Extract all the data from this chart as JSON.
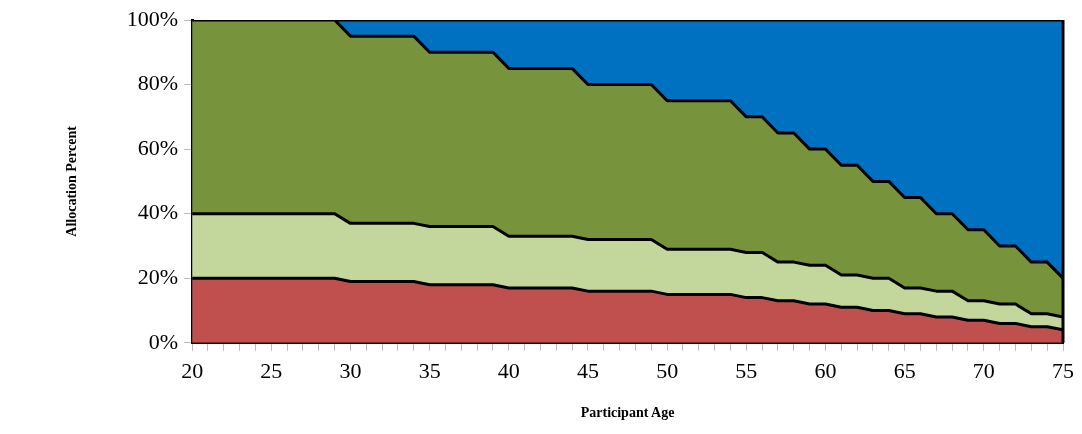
{
  "chart_data": {
    "type": "area",
    "stacked": true,
    "xlabel": "Participant Age",
    "ylabel": "Allocation Percent",
    "x": [
      20,
      21,
      22,
      23,
      24,
      25,
      26,
      27,
      28,
      29,
      30,
      31,
      32,
      33,
      34,
      35,
      36,
      37,
      38,
      39,
      40,
      41,
      42,
      43,
      44,
      45,
      46,
      47,
      48,
      49,
      50,
      51,
      52,
      53,
      54,
      55,
      56,
      57,
      58,
      59,
      60,
      61,
      62,
      63,
      64,
      65,
      66,
      67,
      68,
      69,
      70,
      71,
      72,
      73,
      74,
      75
    ],
    "series": [
      {
        "color": "#c0504d",
        "values": [
          20,
          20,
          20,
          20,
          20,
          20,
          20,
          20,
          20,
          20,
          19,
          19,
          19,
          19,
          19,
          18,
          18,
          18,
          18,
          18,
          17,
          17,
          17,
          17,
          17,
          16,
          16,
          16,
          16,
          16,
          15,
          15,
          15,
          15,
          15,
          14,
          14,
          13,
          13,
          12,
          12,
          11,
          11,
          10,
          10,
          9,
          9,
          8,
          8,
          7,
          7,
          6,
          6,
          5,
          5,
          4
        ]
      },
      {
        "color": "#c3d69b",
        "values": [
          20,
          20,
          20,
          20,
          20,
          20,
          20,
          20,
          20,
          20,
          18,
          18,
          18,
          18,
          18,
          18,
          18,
          18,
          18,
          18,
          16,
          16,
          16,
          16,
          16,
          16,
          16,
          16,
          16,
          16,
          14,
          14,
          14,
          14,
          14,
          14,
          14,
          12,
          12,
          12,
          12,
          10,
          10,
          10,
          10,
          8,
          8,
          8,
          8,
          6,
          6,
          6,
          6,
          4,
          4,
          4
        ]
      },
      {
        "color": "#77933c",
        "values": [
          60,
          60,
          60,
          60,
          60,
          60,
          60,
          60,
          60,
          60,
          58,
          58,
          58,
          58,
          58,
          54,
          54,
          54,
          54,
          54,
          52,
          52,
          52,
          52,
          52,
          48,
          48,
          48,
          48,
          48,
          46,
          46,
          46,
          46,
          46,
          42,
          42,
          40,
          40,
          36,
          36,
          34,
          34,
          30,
          30,
          28,
          28,
          24,
          24,
          22,
          22,
          18,
          18,
          16,
          16,
          12
        ]
      },
      {
        "color": "#0070c0",
        "values": [
          0,
          0,
          0,
          0,
          0,
          0,
          0,
          0,
          0,
          0,
          5,
          5,
          5,
          5,
          5,
          10,
          10,
          10,
          10,
          10,
          15,
          15,
          15,
          15,
          15,
          20,
          20,
          20,
          20,
          20,
          25,
          25,
          25,
          25,
          25,
          30,
          30,
          35,
          35,
          40,
          40,
          45,
          45,
          50,
          50,
          55,
          55,
          60,
          60,
          65,
          65,
          70,
          70,
          75,
          75,
          80
        ]
      }
    ],
    "xlim": [
      20,
      75
    ],
    "xticks": [
      20,
      {
        "value": 21,
        "label": null
      },
      {
        "value": 22,
        "label": null
      },
      {
        "value": 23,
        "label": null
      },
      {
        "value": 24,
        "label": null
      },
      25,
      {
        "value": 26,
        "label": null
      },
      {
        "value": 27,
        "label": null
      },
      {
        "value": 28,
        "label": null
      },
      {
        "value": 29,
        "label": null
      },
      30,
      {
        "value": 31,
        "label": null
      },
      {
        "value": 32,
        "label": null
      },
      {
        "value": 33,
        "label": null
      },
      {
        "value": 34,
        "label": null
      },
      35,
      {
        "value": 36,
        "label": null
      },
      {
        "value": 37,
        "label": null
      },
      {
        "value": 38,
        "label": null
      },
      {
        "value": 39,
        "label": null
      },
      40,
      {
        "value": 41,
        "label": null
      },
      {
        "value": 42,
        "label": null
      },
      {
        "value": 43,
        "label": null
      },
      {
        "value": 44,
        "label": null
      },
      45,
      {
        "value": 46,
        "label": null
      },
      {
        "value": 47,
        "label": null
      },
      {
        "value": 48,
        "label": null
      },
      {
        "value": 49,
        "label": null
      },
      50,
      {
        "value": 51,
        "label": null
      },
      {
        "value": 52,
        "label": null
      },
      {
        "value": 53,
        "label": null
      },
      {
        "value": 54,
        "label": null
      },
      55,
      {
        "value": 56,
        "label": null
      },
      {
        "value": 57,
        "label": null
      },
      {
        "value": 58,
        "label": null
      },
      {
        "value": 59,
        "label": null
      },
      60,
      {
        "value": 61,
        "label": null
      },
      {
        "value": 62,
        "label": null
      },
      {
        "value": 63,
        "label": null
      },
      {
        "value": 64,
        "label": null
      },
      65,
      {
        "value": 66,
        "label": null
      },
      {
        "value": 67,
        "label": null
      },
      {
        "value": 68,
        "label": null
      },
      {
        "value": 69,
        "label": null
      },
      70,
      {
        "value": 71,
        "label": null
      },
      {
        "value": 72,
        "label": null
      },
      {
        "value": 73,
        "label": null
      },
      {
        "value": 74,
        "label": null
      },
      75
    ],
    "ylim": [
      0,
      100
    ],
    "yticks": [
      {
        "value": 0,
        "label": "0%"
      },
      {
        "value": 20,
        "label": "20%"
      },
      {
        "value": 40,
        "label": "40%"
      },
      {
        "value": 60,
        "label": "60%"
      },
      {
        "value": 80,
        "label": "80%"
      },
      {
        "value": 100,
        "label": "100%"
      }
    ],
    "legend": false,
    "line_style": "solid",
    "marker": "none"
  }
}
